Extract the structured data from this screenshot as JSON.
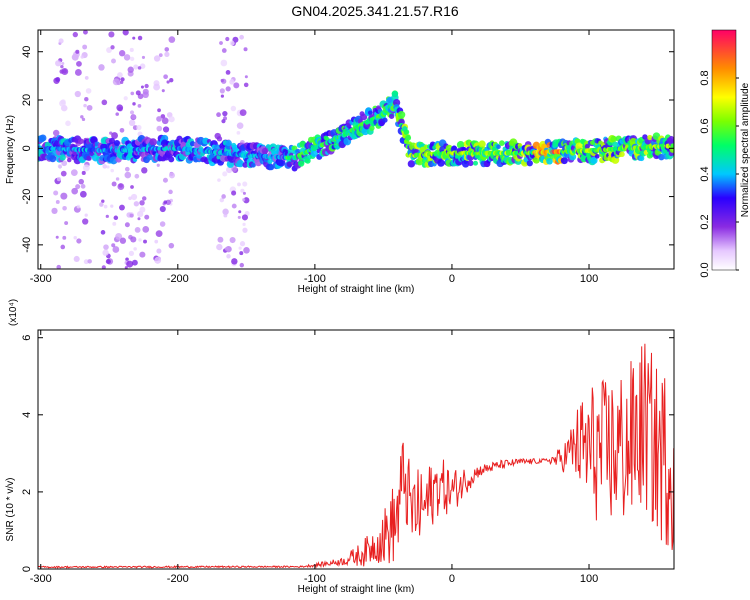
{
  "title": "GN04.2025.341.21.57.R16",
  "chart_data": [
    {
      "type": "heatmap",
      "xlabel": "Height of straight line (km)",
      "ylabel": "Frequency (Hz)",
      "xlim": [
        -302,
        162
      ],
      "ylim": [
        -50,
        49
      ],
      "x_ticks": [
        -300,
        -200,
        -100,
        0,
        100
      ],
      "y_ticks": [
        -40,
        -20,
        0,
        20,
        40
      ],
      "colorbar": {
        "label": "Normalized spectral amplitude",
        "range": [
          0,
          1
        ],
        "ticks": [
          "0.0",
          "0.2",
          "0.4",
          "0.6",
          "0.8"
        ]
      },
      "ridge": [
        {
          "x": -300,
          "y": 0
        },
        {
          "x": -250,
          "y": -1
        },
        {
          "x": -200,
          "y": 0
        },
        {
          "x": -150,
          "y": -3
        },
        {
          "x": -115,
          "y": -4
        },
        {
          "x": -100,
          "y": 0
        },
        {
          "x": -80,
          "y": 5
        },
        {
          "x": -65,
          "y": 10
        },
        {
          "x": -50,
          "y": 14
        },
        {
          "x": -42,
          "y": 19
        },
        {
          "x": -30,
          "y": -3
        },
        {
          "x": 0,
          "y": -2
        },
        {
          "x": 50,
          "y": -2
        },
        {
          "x": 100,
          "y": -1
        },
        {
          "x": 160,
          "y": 1
        }
      ]
    },
    {
      "type": "line",
      "xlabel": "Height of straight line (km)",
      "ylabel": "SNR (10 * v/v)",
      "y_multiplier": "(x10⁴)",
      "xlim": [
        -302,
        162
      ],
      "ylim": [
        0,
        6.2
      ],
      "x_ticks": [
        -300,
        -200,
        -100,
        0,
        100
      ],
      "y_ticks": [
        0,
        2,
        4,
        6
      ],
      "color": "#e82020",
      "envelope": [
        {
          "x": -302,
          "y": 0.05
        },
        {
          "x": -110,
          "y": 0.06
        },
        {
          "x": -95,
          "y": 0.12
        },
        {
          "x": -80,
          "y": 0.2
        },
        {
          "x": -65,
          "y": 0.4
        },
        {
          "x": -50,
          "y": 0.8
        },
        {
          "x": -40,
          "y": 1.3
        },
        {
          "x": -35,
          "y": 2.5
        },
        {
          "x": -30,
          "y": 1.5
        },
        {
          "x": -20,
          "y": 1.6
        },
        {
          "x": -10,
          "y": 2.2
        },
        {
          "x": 0,
          "y": 2.0
        },
        {
          "x": 10,
          "y": 2.3
        },
        {
          "x": 20,
          "y": 2.55
        },
        {
          "x": 35,
          "y": 2.7
        },
        {
          "x": 50,
          "y": 2.78
        },
        {
          "x": 65,
          "y": 2.8
        },
        {
          "x": 80,
          "y": 2.85
        },
        {
          "x": 90,
          "y": 3.2
        },
        {
          "x": 110,
          "y": 3.0
        },
        {
          "x": 130,
          "y": 3.2
        },
        {
          "x": 140,
          "y": 3.8
        },
        {
          "x": 150,
          "y": 3.0
        },
        {
          "x": 162,
          "y": 2.8
        }
      ],
      "noise_amplitude": [
        {
          "x": -302,
          "y": 0.02
        },
        {
          "x": -110,
          "y": 0.02
        },
        {
          "x": -80,
          "y": 0.1
        },
        {
          "x": -55,
          "y": 0.5
        },
        {
          "x": -40,
          "y": 1.2
        },
        {
          "x": -20,
          "y": 1.0
        },
        {
          "x": 0,
          "y": 0.6
        },
        {
          "x": 20,
          "y": 0.15
        },
        {
          "x": 70,
          "y": 0.05
        },
        {
          "x": 85,
          "y": 0.5
        },
        {
          "x": 100,
          "y": 1.8
        },
        {
          "x": 130,
          "y": 2.2
        },
        {
          "x": 162,
          "y": 2.4
        }
      ]
    }
  ]
}
